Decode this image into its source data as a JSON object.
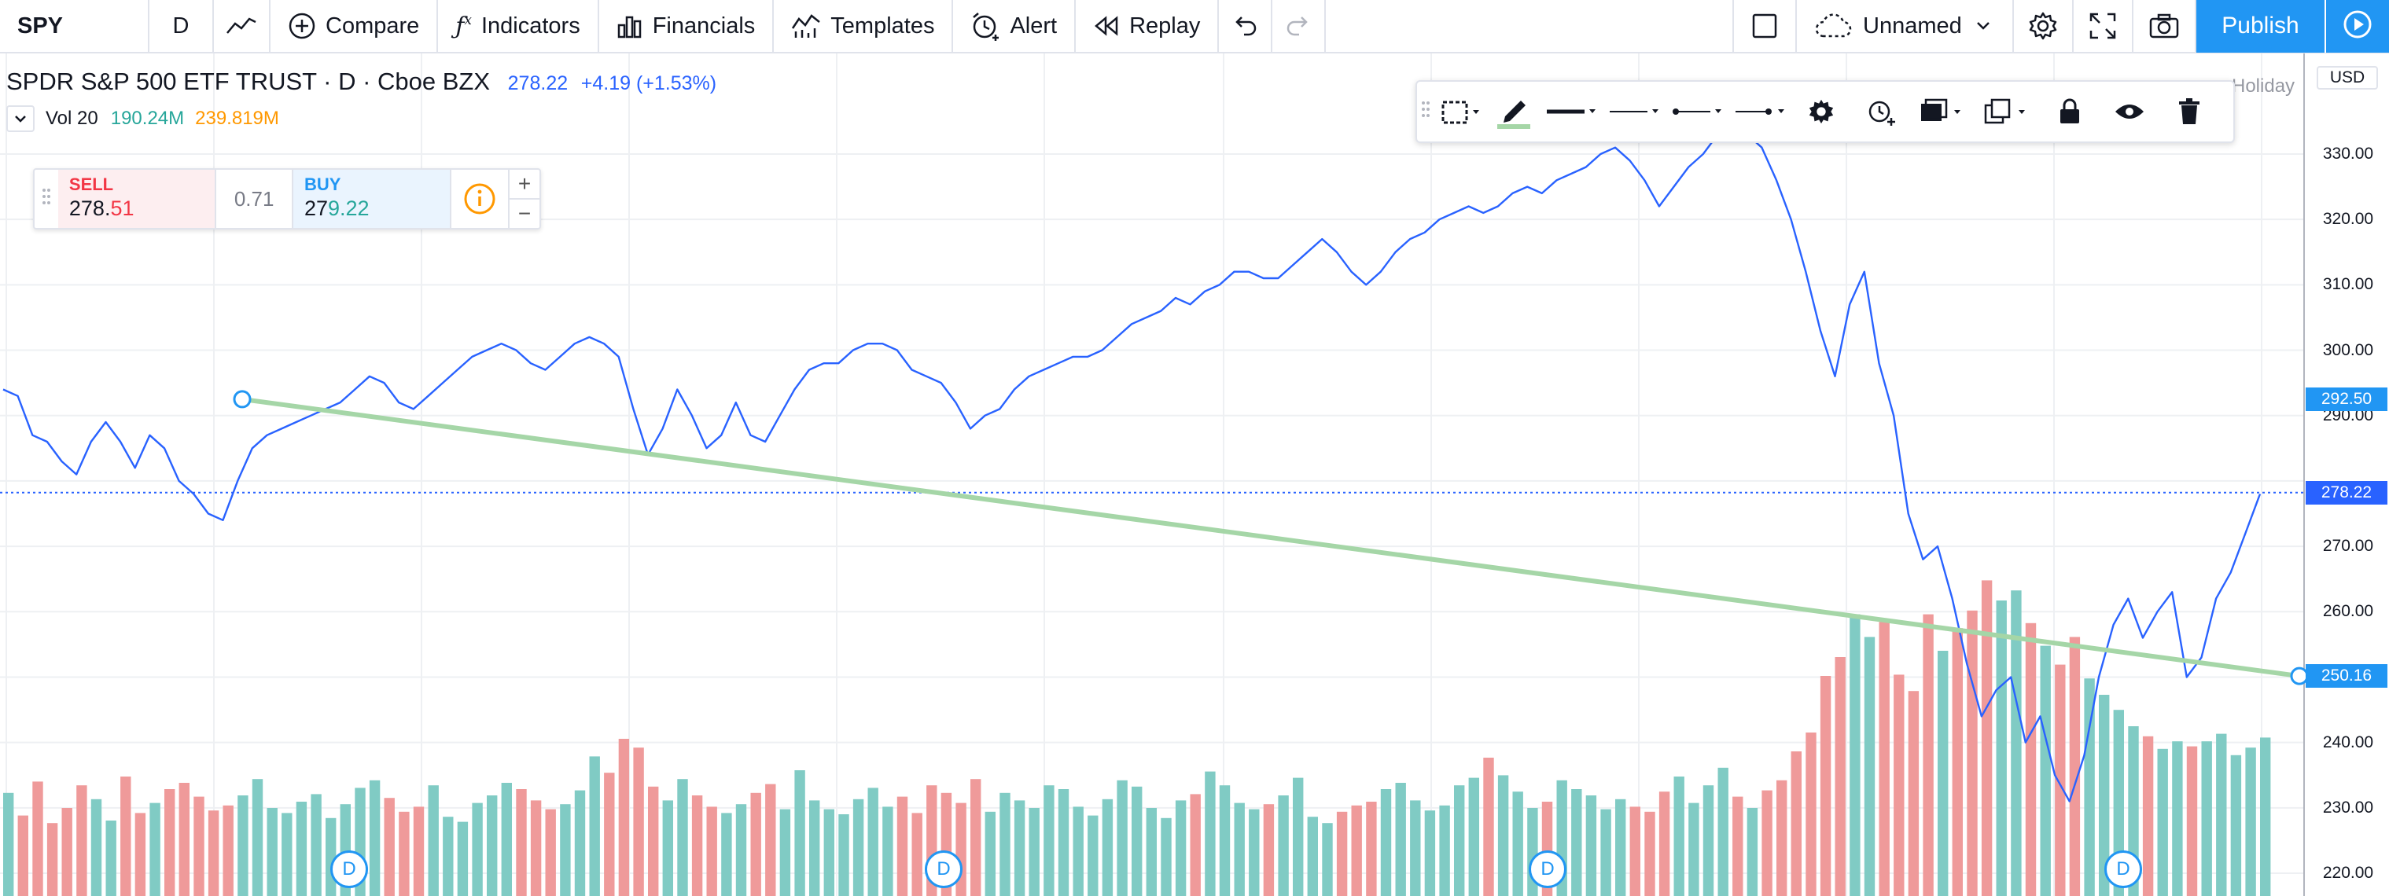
{
  "toolbar": {
    "symbol": "SPY",
    "interval": "D",
    "compare": "Compare",
    "indicators": "Indicators",
    "financials": "Financials",
    "templates": "Templates",
    "alert": "Alert",
    "replay": "Replay",
    "layout_name": "Unnamed",
    "publish": "Publish"
  },
  "legend": {
    "title": "SPDR S&P 500 ETF TRUST · D · Cboe BZX",
    "price": "278.22",
    "change": "+4.19 (+1.53%)",
    "vol_label": "Vol 20",
    "vol_value": "190.24M",
    "vol_ma": "239.819M"
  },
  "trade": {
    "sell_label": "SELL",
    "sell_main": "278.",
    "sell_tail": "51",
    "spread": "0.71",
    "buy_label": "BUY",
    "buy_main": "27",
    "buy_tail": "9.22",
    "plus": "+",
    "minus": "−"
  },
  "holiday": "Holiday",
  "currency": "USD",
  "price_axis": [
    "330.00",
    "320.00",
    "310.00",
    "300.00",
    "290.00",
    "270.00",
    "260.00",
    "240.00",
    "230.00",
    "220.00"
  ],
  "price_tags": {
    "upper": "292.50",
    "last": "278.22",
    "lower": "250.16"
  },
  "dividend_mark": "D",
  "colors": {
    "line": "#2962ff",
    "trend": "#a5d6a7",
    "vol_up": "#80cbc4",
    "vol_down": "#ef9a9a",
    "accent": "#2196f3"
  },
  "chart_data": {
    "type": "line",
    "price_ylim": [
      215,
      340
    ],
    "close": [
      294,
      293,
      287,
      286,
      283,
      281,
      286,
      289,
      286,
      282,
      287,
      285,
      280,
      278,
      275,
      274,
      280,
      285,
      287,
      288,
      289,
      290,
      291,
      292,
      294,
      296,
      295,
      292,
      291,
      293,
      295,
      297,
      299,
      300,
      301,
      300,
      298,
      297,
      299,
      301,
      302,
      301,
      299,
      291,
      284,
      288,
      294,
      290,
      285,
      287,
      292,
      287,
      286,
      290,
      294,
      297,
      298,
      298,
      300,
      301,
      301,
      300,
      297,
      296,
      295,
      292,
      288,
      290,
      291,
      294,
      296,
      297,
      298,
      299,
      299,
      300,
      302,
      304,
      305,
      306,
      308,
      307,
      309,
      310,
      312,
      312,
      311,
      311,
      313,
      315,
      317,
      315,
      312,
      310,
      312,
      315,
      317,
      318,
      320,
      321,
      322,
      321,
      322,
      324,
      325,
      324,
      326,
      327,
      328,
      330,
      331,
      329,
      326,
      322,
      325,
      328,
      330,
      333,
      332,
      333,
      331,
      326,
      320,
      312,
      303,
      296,
      307,
      312,
      298,
      290,
      275,
      268,
      270,
      262,
      252,
      244,
      248,
      250,
      240,
      244,
      235,
      231,
      238,
      250,
      258,
      262,
      256,
      260,
      263,
      250,
      253,
      262,
      266,
      272,
      278
    ],
    "volume": [
      82,
      64,
      91,
      58,
      70,
      88,
      77,
      60,
      95,
      66,
      74,
      85,
      90,
      79,
      68,
      72,
      80,
      93,
      70,
      66,
      75,
      81,
      62,
      73,
      86,
      92,
      78,
      67,
      71,
      88,
      63,
      59,
      74,
      80,
      90,
      85,
      76,
      69,
      73,
      84,
      111,
      98,
      125,
      118,
      87,
      76,
      93,
      80,
      71,
      66,
      73,
      82,
      89,
      69,
      100,
      76,
      69,
      65,
      77,
      86,
      71,
      79,
      66,
      88,
      82,
      74,
      93,
      67,
      82,
      76,
      70,
      88,
      85,
      71,
      64,
      77,
      92,
      87,
      70,
      62,
      76,
      81,
      99,
      88,
      74,
      69,
      73,
      80,
      94,
      63,
      58,
      67,
      72,
      75,
      85,
      90,
      76,
      68,
      72,
      88,
      94,
      110,
      96,
      83,
      70,
      75,
      92,
      85,
      80,
      69,
      77,
      71,
      67,
      83,
      95,
      74,
      88,
      102,
      79,
      70,
      84,
      92,
      115,
      130,
      175,
      190,
      224,
      206,
      218,
      176,
      163,
      224,
      195,
      213,
      227,
      251,
      235,
      243,
      217,
      199,
      184,
      206,
      173,
      160,
      148,
      135,
      127,
      117,
      123,
      119,
      123,
      129,
      112,
      118,
      126
    ]
  }
}
